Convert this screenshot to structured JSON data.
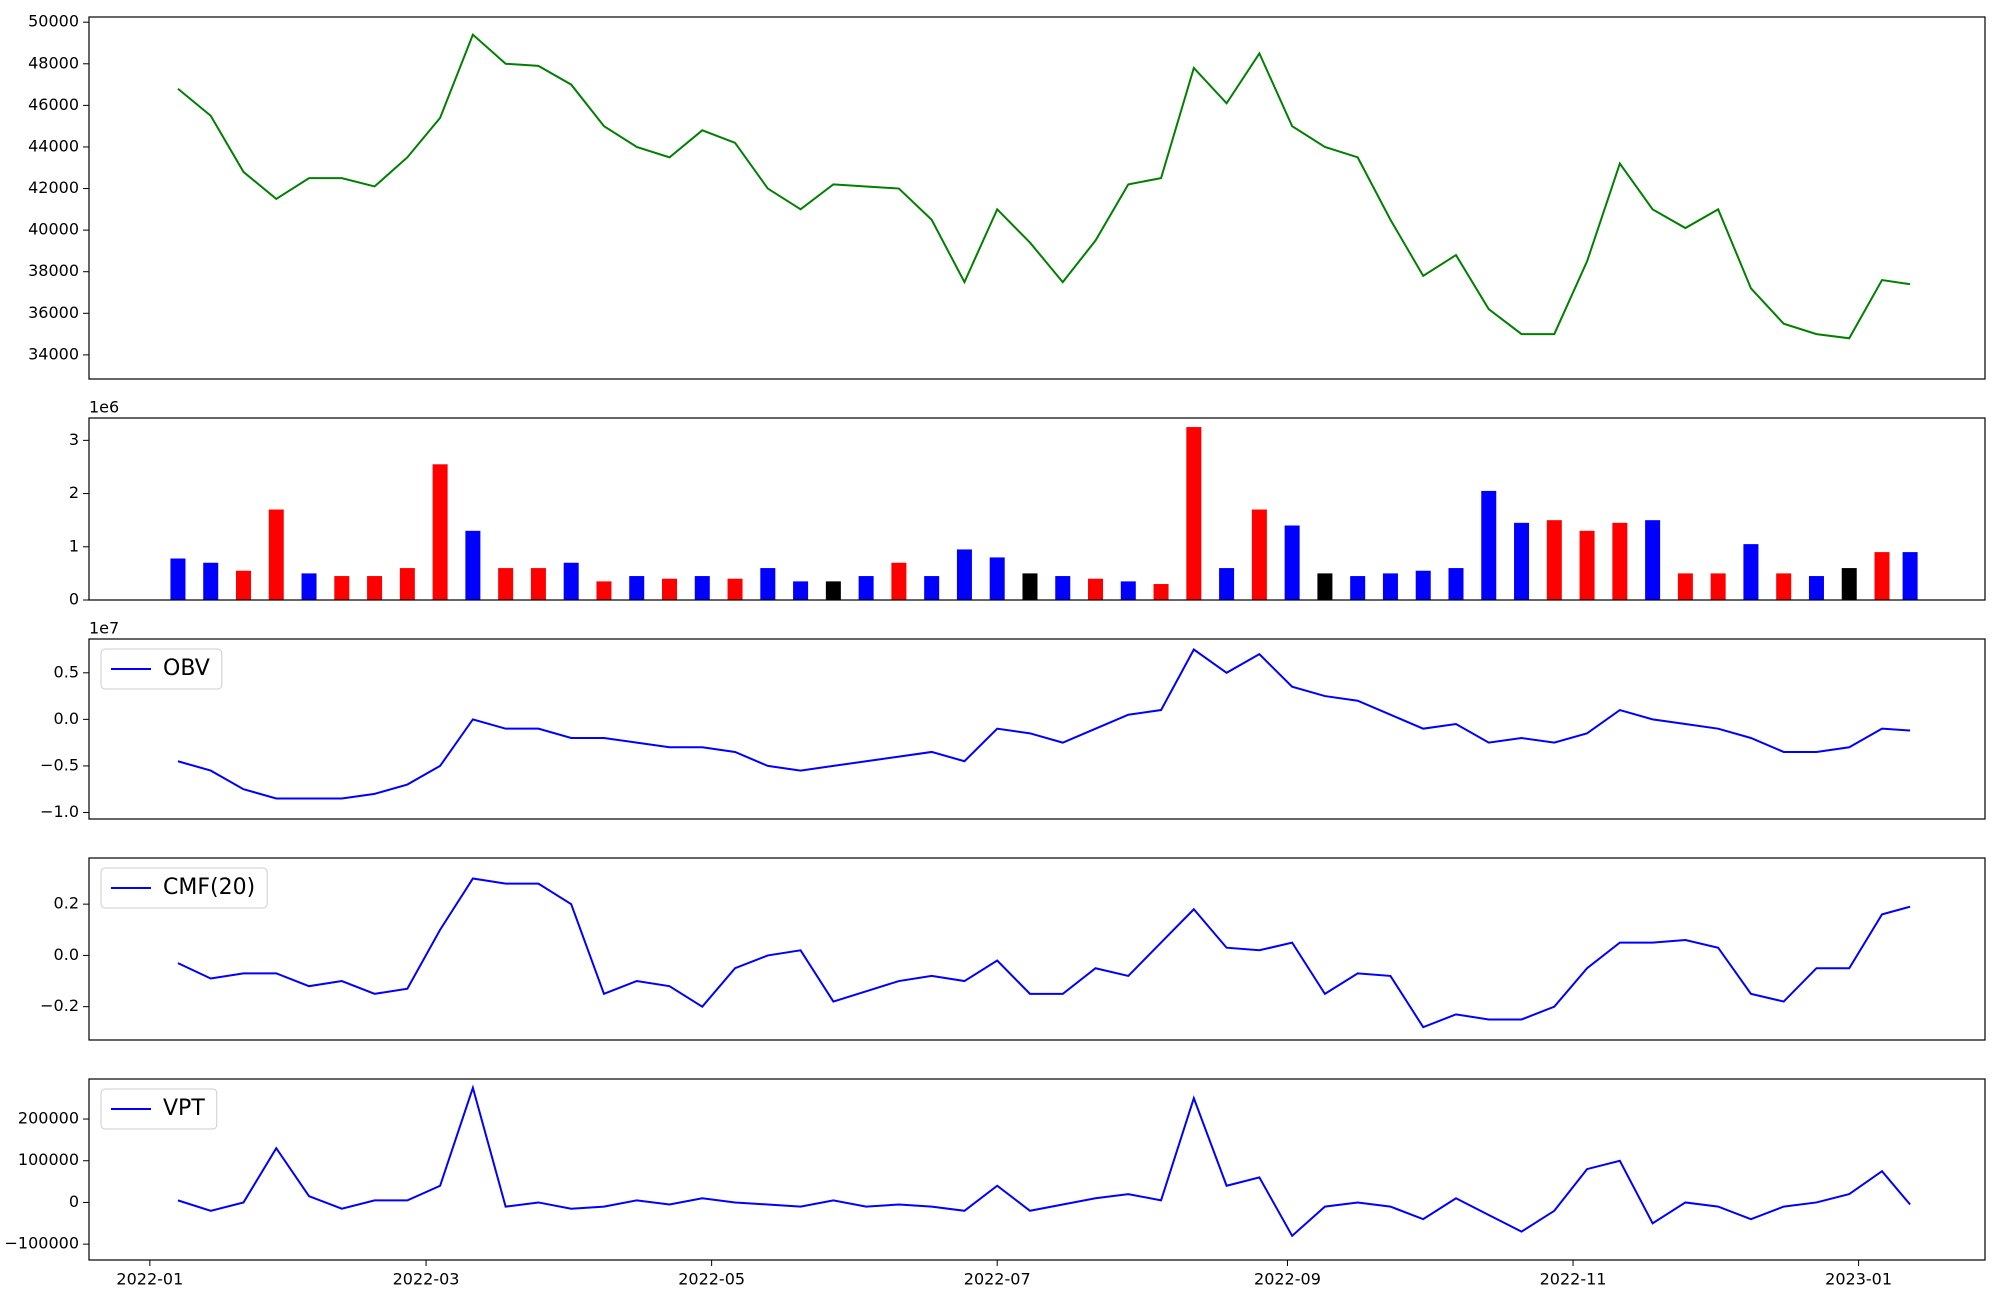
{
  "chart_data": [
    {
      "type": "line",
      "x": [
        "2022-01-07",
        "2022-01-14",
        "2022-01-21",
        "2022-01-28",
        "2022-02-04",
        "2022-02-11",
        "2022-02-18",
        "2022-02-25",
        "2022-03-04",
        "2022-03-11",
        "2022-03-18",
        "2022-03-25",
        "2022-04-01",
        "2022-04-08",
        "2022-04-15",
        "2022-04-22",
        "2022-04-29",
        "2022-05-06",
        "2022-05-13",
        "2022-05-20",
        "2022-05-27",
        "2022-06-03",
        "2022-06-10",
        "2022-06-17",
        "2022-06-24",
        "2022-07-01",
        "2022-07-08",
        "2022-07-15",
        "2022-07-22",
        "2022-07-29",
        "2022-08-05",
        "2022-08-12",
        "2022-08-19",
        "2022-08-26",
        "2022-09-02",
        "2022-09-09",
        "2022-09-16",
        "2022-09-23",
        "2022-09-30",
        "2022-10-07",
        "2022-10-14",
        "2022-10-21",
        "2022-10-28",
        "2022-11-04",
        "2022-11-11",
        "2022-11-18",
        "2022-11-25",
        "2022-12-02",
        "2022-12-09",
        "2022-12-16",
        "2022-12-23",
        "2022-12-30",
        "2023-01-06",
        "2023-01-12"
      ],
      "series": [
        {
          "color": "green",
          "values": [
            46800,
            45500,
            42800,
            41500,
            42500,
            42500,
            42100,
            43500,
            45400,
            49400,
            48000,
            47900,
            47000,
            45000,
            44000,
            43500,
            44800,
            44200,
            42000,
            41000,
            42200,
            42100,
            42000,
            40500,
            37500,
            41000,
            39400,
            37500,
            39500,
            42200,
            42500,
            47800,
            46100,
            48500,
            45000,
            44000,
            43500,
            40500,
            37800,
            38800,
            36200,
            35000,
            35000,
            38500,
            43200,
            41000,
            40100,
            41000,
            37200,
            35500,
            35000,
            34800,
            37600,
            37400
          ]
        }
      ],
      "xlim": [
        "2021-12-19",
        "2023-01-28"
      ],
      "ylim": [
        32840,
        50250
      ],
      "yticks": [
        34000,
        36000,
        38000,
        40000,
        42000,
        44000,
        46000,
        48000,
        50000
      ]
    },
    {
      "type": "bar",
      "x": [
        "2022-01-07",
        "2022-01-14",
        "2022-01-21",
        "2022-01-28",
        "2022-02-04",
        "2022-02-11",
        "2022-02-18",
        "2022-02-25",
        "2022-03-04",
        "2022-03-11",
        "2022-03-18",
        "2022-03-25",
        "2022-04-01",
        "2022-04-08",
        "2022-04-15",
        "2022-04-22",
        "2022-04-29",
        "2022-05-06",
        "2022-05-13",
        "2022-05-20",
        "2022-05-27",
        "2022-06-03",
        "2022-06-10",
        "2022-06-17",
        "2022-06-24",
        "2022-07-01",
        "2022-07-08",
        "2022-07-15",
        "2022-07-22",
        "2022-07-29",
        "2022-08-05",
        "2022-08-12",
        "2022-08-19",
        "2022-08-26",
        "2022-09-02",
        "2022-09-09",
        "2022-09-16",
        "2022-09-23",
        "2022-09-30",
        "2022-10-07",
        "2022-10-14",
        "2022-10-21",
        "2022-10-28",
        "2022-11-04",
        "2022-11-11",
        "2022-11-18",
        "2022-11-25",
        "2022-12-02",
        "2022-12-09",
        "2022-12-16",
        "2022-12-23",
        "2022-12-30",
        "2023-01-06",
        "2023-01-12"
      ],
      "values": [
        780000,
        700000,
        550000,
        1700000,
        500000,
        450000,
        450000,
        600000,
        2550000,
        1300000,
        600000,
        600000,
        700000,
        350000,
        450000,
        400000,
        450000,
        400000,
        600000,
        350000,
        350000,
        450000,
        700000,
        450000,
        950000,
        800000,
        500000,
        450000,
        400000,
        350000,
        300000,
        3250000,
        600000,
        1700000,
        1400000,
        500000,
        450000,
        500000,
        550000,
        600000,
        2050000,
        1450000,
        1500000,
        1300000,
        1450000,
        1500000,
        500000,
        500000,
        1050000,
        500000,
        450000,
        600000,
        900000,
        900000
      ],
      "colors": [
        "blue",
        "blue",
        "red",
        "red",
        "blue",
        "red",
        "red",
        "red",
        "red",
        "blue",
        "red",
        "red",
        "blue",
        "red",
        "blue",
        "red",
        "blue",
        "red",
        "blue",
        "blue",
        "black",
        "blue",
        "red",
        "blue",
        "blue",
        "blue",
        "black",
        "blue",
        "red",
        "blue",
        "red",
        "red",
        "blue",
        "red",
        "blue",
        "black",
        "blue",
        "blue",
        "blue",
        "blue",
        "blue",
        "blue",
        "red",
        "red",
        "red",
        "blue",
        "red",
        "red",
        "blue",
        "red",
        "blue",
        "black",
        "red",
        "blue"
      ],
      "offset_label": "1e6",
      "xlim": [
        "2021-12-19",
        "2023-01-28"
      ],
      "ylim": [
        0,
        3420000
      ],
      "yticks": [
        0,
        {
          "value": 1000000,
          "label": "1"
        },
        {
          "value": 2000000,
          "label": "2"
        },
        {
          "value": 3000000,
          "label": "3"
        }
      ]
    },
    {
      "type": "line",
      "x": [
        "2022-01-07",
        "2022-01-14",
        "2022-01-21",
        "2022-01-28",
        "2022-02-04",
        "2022-02-11",
        "2022-02-18",
        "2022-02-25",
        "2022-03-04",
        "2022-03-11",
        "2022-03-18",
        "2022-03-25",
        "2022-04-01",
        "2022-04-08",
        "2022-04-15",
        "2022-04-22",
        "2022-04-29",
        "2022-05-06",
        "2022-05-13",
        "2022-05-20",
        "2022-05-27",
        "2022-06-03",
        "2022-06-10",
        "2022-06-17",
        "2022-06-24",
        "2022-07-01",
        "2022-07-08",
        "2022-07-15",
        "2022-07-22",
        "2022-07-29",
        "2022-08-05",
        "2022-08-12",
        "2022-08-19",
        "2022-08-26",
        "2022-09-02",
        "2022-09-09",
        "2022-09-16",
        "2022-09-23",
        "2022-09-30",
        "2022-10-07",
        "2022-10-14",
        "2022-10-21",
        "2022-10-28",
        "2022-11-04",
        "2022-11-11",
        "2022-11-18",
        "2022-11-25",
        "2022-12-02",
        "2022-12-09",
        "2022-12-16",
        "2022-12-23",
        "2022-12-30",
        "2023-01-06",
        "2023-01-12"
      ],
      "series": [
        {
          "name": "OBV",
          "color": "blue",
          "values": [
            -4500000,
            -5500000,
            -7500000,
            -8500000,
            -8500000,
            -8500000,
            -8000000,
            -7000000,
            -5000000,
            0,
            -1000000,
            -1000000,
            -2000000,
            -2000000,
            -2500000,
            -3000000,
            -3000000,
            -3500000,
            -5000000,
            -5500000,
            -5000000,
            -4500000,
            -4000000,
            -3500000,
            -4500000,
            -1000000,
            -1500000,
            -2500000,
            -1000000,
            500000,
            1000000,
            7500000,
            5000000,
            7000000,
            3500000,
            2500000,
            2000000,
            500000,
            -1000000,
            -500000,
            -2500000,
            -2000000,
            -2500000,
            -1500000,
            1000000,
            0,
            -500000,
            -1000000,
            -2000000,
            -3500000,
            -3500000,
            -3000000,
            -1000000,
            -1200000
          ]
        }
      ],
      "legend": "upper left",
      "offset_label": "1e7",
      "xlim": [
        "2021-12-19",
        "2023-01-28"
      ],
      "ylim": [
        -10700000,
        8630000
      ],
      "yticks": [
        {
          "value": -10000000,
          "label": "−1.0"
        },
        {
          "value": -5000000,
          "label": "−0.5"
        },
        {
          "value": 0,
          "label": "0.0"
        },
        {
          "value": 5000000,
          "label": "0.5"
        }
      ]
    },
    {
      "type": "line",
      "x": [
        "2022-01-07",
        "2022-01-14",
        "2022-01-21",
        "2022-01-28",
        "2022-02-04",
        "2022-02-11",
        "2022-02-18",
        "2022-02-25",
        "2022-03-04",
        "2022-03-11",
        "2022-03-18",
        "2022-03-25",
        "2022-04-01",
        "2022-04-08",
        "2022-04-15",
        "2022-04-22",
        "2022-04-29",
        "2022-05-06",
        "2022-05-13",
        "2022-05-20",
        "2022-05-27",
        "2022-06-03",
        "2022-06-10",
        "2022-06-17",
        "2022-06-24",
        "2022-07-01",
        "2022-07-08",
        "2022-07-15",
        "2022-07-22",
        "2022-07-29",
        "2022-08-05",
        "2022-08-12",
        "2022-08-19",
        "2022-08-26",
        "2022-09-02",
        "2022-09-09",
        "2022-09-16",
        "2022-09-23",
        "2022-09-30",
        "2022-10-07",
        "2022-10-14",
        "2022-10-21",
        "2022-10-28",
        "2022-11-04",
        "2022-11-11",
        "2022-11-18",
        "2022-11-25",
        "2022-12-02",
        "2022-12-09",
        "2022-12-16",
        "2022-12-23",
        "2022-12-30",
        "2023-01-06",
        "2023-01-12"
      ],
      "series": [
        {
          "name": "CMF(20)",
          "color": "blue",
          "values": [
            -0.03,
            -0.09,
            -0.07,
            -0.07,
            -0.12,
            -0.1,
            -0.15,
            -0.13,
            0.1,
            0.3,
            0.28,
            0.28,
            0.2,
            -0.15,
            -0.1,
            -0.12,
            -0.2,
            -0.05,
            0,
            0.02,
            -0.18,
            -0.14,
            -0.1,
            -0.08,
            -0.1,
            -0.02,
            -0.15,
            -0.15,
            -0.05,
            -0.08,
            0.05,
            0.18,
            0.03,
            0.02,
            0.05,
            -0.15,
            -0.07,
            -0.08,
            -0.28,
            -0.23,
            -0.25,
            -0.25,
            -0.2,
            -0.05,
            0.05,
            0.05,
            0.06,
            0.03,
            -0.15,
            -0.18,
            -0.05,
            -0.05,
            0.16,
            0.19
          ]
        }
      ],
      "legend": "upper left",
      "xlim": [
        "2021-12-19",
        "2023-01-28"
      ],
      "ylim": [
        -0.33,
        0.38
      ],
      "yticks": [
        {
          "value": -0.2,
          "label": "−0.2"
        },
        {
          "value": 0,
          "label": "0.0"
        },
        0.2
      ]
    },
    {
      "type": "line",
      "x": [
        "2022-01-07",
        "2022-01-14",
        "2022-01-21",
        "2022-01-28",
        "2022-02-04",
        "2022-02-11",
        "2022-02-18",
        "2022-02-25",
        "2022-03-04",
        "2022-03-11",
        "2022-03-18",
        "2022-03-25",
        "2022-04-01",
        "2022-04-08",
        "2022-04-15",
        "2022-04-22",
        "2022-04-29",
        "2022-05-06",
        "2022-05-13",
        "2022-05-20",
        "2022-05-27",
        "2022-06-03",
        "2022-06-10",
        "2022-06-17",
        "2022-06-24",
        "2022-07-01",
        "2022-07-08",
        "2022-07-15",
        "2022-07-22",
        "2022-07-29",
        "2022-08-05",
        "2022-08-12",
        "2022-08-19",
        "2022-08-26",
        "2022-09-02",
        "2022-09-09",
        "2022-09-16",
        "2022-09-23",
        "2022-09-30",
        "2022-10-07",
        "2022-10-14",
        "2022-10-21",
        "2022-10-28",
        "2022-11-04",
        "2022-11-11",
        "2022-11-18",
        "2022-11-25",
        "2022-12-02",
        "2022-12-09",
        "2022-12-16",
        "2022-12-23",
        "2022-12-30",
        "2023-01-06",
        "2023-01-12"
      ],
      "series": [
        {
          "name": "VPT",
          "color": "blue",
          "values": [
            5000,
            -20000,
            0,
            130000,
            15000,
            -15000,
            5000,
            5000,
            40000,
            275000,
            -10000,
            0,
            -15000,
            -10000,
            5000,
            -5000,
            10000,
            0,
            -5000,
            -10000,
            5000,
            -10000,
            -5000,
            -10000,
            -20000,
            40000,
            -20000,
            -5000,
            10000,
            20000,
            5000,
            250000,
            40000,
            60000,
            -80000,
            -10000,
            0,
            -10000,
            -40000,
            10000,
            -30000,
            -70000,
            -20000,
            80000,
            100000,
            -50000,
            0,
            -10000,
            -40000,
            -10000,
            0,
            20000,
            75000,
            -5000
          ]
        }
      ],
      "legend": "upper left",
      "xlim": [
        "2021-12-19",
        "2023-01-28"
      ],
      "ylim": [
        -138000,
        296000
      ],
      "yticks": [
        {
          "value": -100000,
          "label": "−100000"
        },
        0,
        100000,
        200000
      ],
      "xticks": [
        {
          "value": "2022-01-01",
          "label": "2022-01"
        },
        {
          "value": "2022-03-01",
          "label": "2022-03"
        },
        {
          "value": "2022-05-01",
          "label": "2022-05"
        },
        {
          "value": "2022-07-01",
          "label": "2022-07"
        },
        {
          "value": "2022-09-01",
          "label": "2022-09"
        },
        {
          "value": "2022-11-01",
          "label": "2022-11"
        },
        {
          "value": "2023-01-01",
          "label": "2023-01"
        }
      ]
    }
  ]
}
